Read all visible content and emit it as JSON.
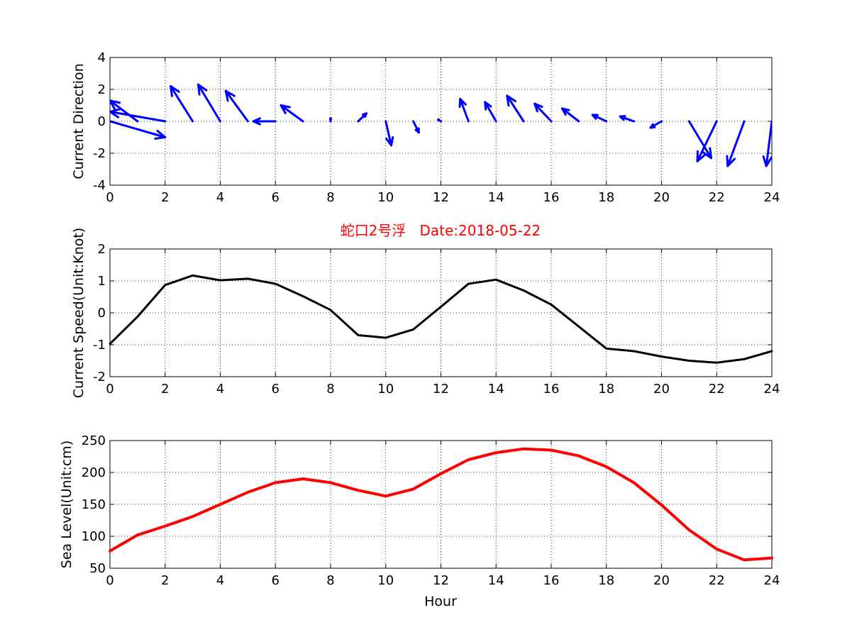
{
  "colors": {
    "arrows": "#0000ff",
    "speed_line": "#000000",
    "level_line": "#ff0000",
    "title": "#ff0000",
    "axes": "#000000",
    "grid": "#000000"
  },
  "title": "蛇口2号浮   Date:2018-05-22",
  "chart_data": [
    {
      "id": "direction",
      "type": "quiver",
      "ylabel": "Current Direction",
      "xlabel": "",
      "xlim": [
        0,
        24
      ],
      "ylim": [
        -4,
        4
      ],
      "xticks": [
        "0",
        "2",
        "4",
        "6",
        "8",
        "10",
        "12",
        "14",
        "16",
        "18",
        "20",
        "22",
        "24"
      ],
      "yticks": [
        "-4",
        "-2",
        "0",
        "2",
        "4"
      ],
      "grid": true,
      "hours": [
        0,
        1,
        2,
        3,
        4,
        5,
        6,
        7,
        8,
        9,
        10,
        11,
        12,
        13,
        14,
        15,
        16,
        17,
        18,
        19,
        20,
        21,
        22,
        23,
        24
      ],
      "u": [
        2.0,
        -1.0,
        -2.0,
        -0.8,
        -0.8,
        -0.8,
        -0.8,
        -0.8,
        0.0,
        0.3,
        0.2,
        0.2,
        -0.1,
        -0.3,
        -0.4,
        -0.6,
        -0.6,
        -0.6,
        -0.5,
        -0.5,
        -0.4,
        0.8,
        -0.7,
        -0.6,
        -0.2
      ],
      "v": [
        -1.0,
        1.3,
        0.6,
        2.2,
        2.3,
        1.9,
        0.0,
        1.0,
        0.2,
        0.5,
        -1.5,
        -0.7,
        0.1,
        1.4,
        1.2,
        1.6,
        1.1,
        0.8,
        0.4,
        0.3,
        -0.4,
        -2.3,
        -2.5,
        -2.8,
        -2.8
      ],
      "note": "Arrow components in data units; arrows drawn at each hour."
    },
    {
      "id": "speed",
      "type": "line",
      "ylabel": "Current Speed(Unit:Knot)",
      "xlabel": "",
      "xlim": [
        0,
        24
      ],
      "ylim": [
        -2,
        2
      ],
      "xticks": [
        "0",
        "2",
        "4",
        "6",
        "8",
        "10",
        "12",
        "14",
        "16",
        "18",
        "20",
        "22",
        "24"
      ],
      "yticks": [
        "-2",
        "-1",
        "0",
        "1",
        "2"
      ],
      "grid": true,
      "x": [
        0,
        1,
        2,
        3,
        4,
        5,
        6,
        7,
        8,
        9,
        10,
        11,
        12,
        13,
        14,
        15,
        16,
        17,
        18,
        19,
        20,
        21,
        22,
        23,
        24
      ],
      "y": [
        -0.97,
        -0.12,
        0.87,
        1.17,
        1.02,
        1.07,
        0.91,
        0.52,
        0.09,
        -0.7,
        -0.78,
        -0.52,
        0.19,
        0.91,
        1.04,
        0.7,
        0.26,
        -0.43,
        -1.12,
        -1.2,
        -1.37,
        -1.5,
        -1.56,
        -1.45,
        -1.2
      ]
    },
    {
      "id": "level",
      "type": "line",
      "ylabel": "Sea Level(Unit:cm)",
      "xlabel": "Hour",
      "xlim": [
        0,
        24
      ],
      "ylim": [
        50,
        250
      ],
      "xticks": [
        "0",
        "2",
        "4",
        "6",
        "8",
        "10",
        "12",
        "14",
        "16",
        "18",
        "20",
        "22",
        "24"
      ],
      "yticks": [
        "50",
        "100",
        "150",
        "200",
        "250"
      ],
      "grid": true,
      "x": [
        0,
        1,
        2,
        3,
        4,
        5,
        6,
        7,
        8,
        9,
        10,
        11,
        12,
        13,
        14,
        15,
        16,
        17,
        18,
        19,
        20,
        21,
        22,
        23,
        24
      ],
      "y": [
        77,
        102,
        116,
        131,
        150,
        169,
        184,
        190,
        184,
        172,
        163,
        174,
        198,
        220,
        231,
        237,
        235,
        226,
        209,
        184,
        149,
        110,
        80,
        63,
        66
      ]
    }
  ]
}
